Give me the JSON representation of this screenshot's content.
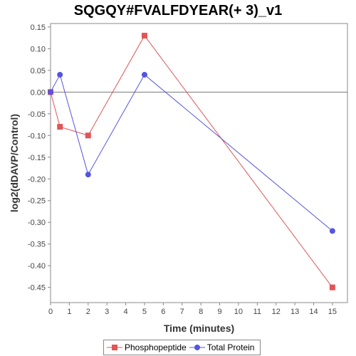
{
  "chart_data": {
    "type": "line",
    "title": "SQGQY#FVALFDYEAR(+ 3)_v1",
    "xlabel": "Time (minutes)",
    "ylabel": "log2(dDAVP/Control)",
    "xlim": [
      0,
      15.8
    ],
    "ylim": [
      -0.485,
      0.158
    ],
    "x_ticks": [
      0,
      1,
      2,
      3,
      4,
      5,
      6,
      7,
      8,
      9,
      10,
      11,
      12,
      13,
      14,
      15
    ],
    "y_ticks": [
      0.15,
      0.1,
      0.05,
      0.0,
      -0.05,
      -0.1,
      -0.15,
      -0.2,
      -0.25,
      -0.3,
      -0.35,
      -0.4,
      -0.45
    ],
    "y_tick_labels": [
      "0.15",
      "0.10",
      "0.05",
      "0.00",
      "-0.05",
      "-0.10",
      "-0.15",
      "-0.20",
      "-0.25",
      "-0.30",
      "-0.35",
      "-0.40",
      "-0.45"
    ],
    "grid": false,
    "legend_position": "bottom",
    "series": [
      {
        "name": "Phosphopeptide",
        "color": "#e05555",
        "marker": "square",
        "x": [
          0,
          0.5,
          2,
          5,
          15
        ],
        "y": [
          0.0,
          -0.08,
          -0.1,
          0.13,
          -0.45
        ]
      },
      {
        "name": "Total Protein",
        "color": "#5555e0",
        "marker": "circle",
        "x": [
          0,
          0.5,
          2,
          5,
          15
        ],
        "y": [
          0.0,
          0.04,
          -0.19,
          0.04,
          -0.32
        ]
      }
    ]
  }
}
